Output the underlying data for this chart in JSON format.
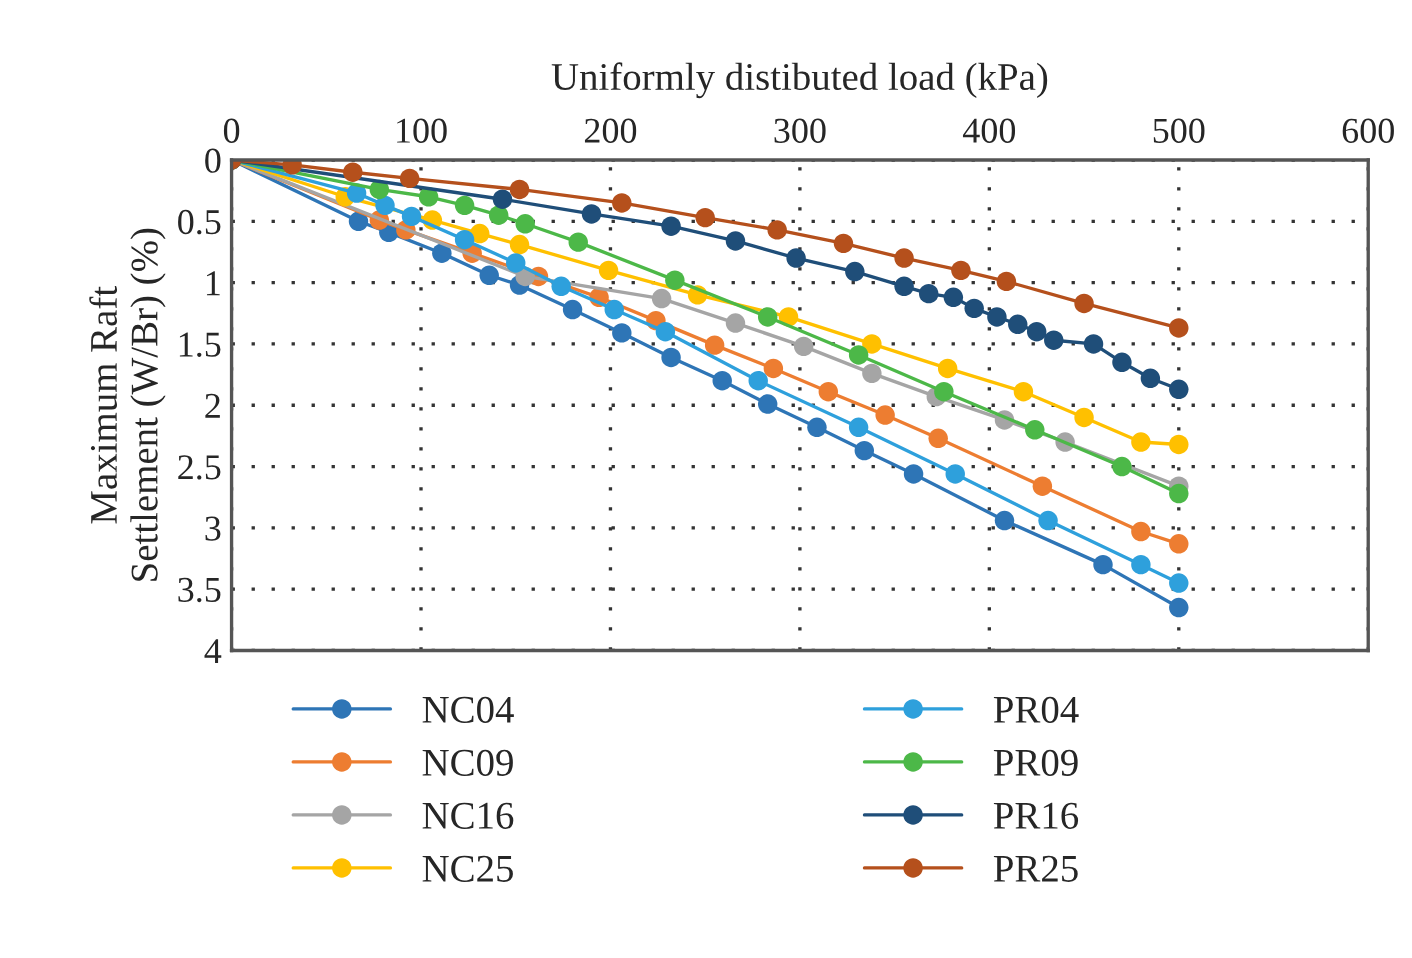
{
  "chart_data": {
    "type": "line",
    "xlabel": "Uniformly distibuted load (kPa)",
    "ylabel": "Maximum Raft\nSettlement (W/Br) (%)",
    "xlim": [
      0,
      600
    ],
    "xticks": [
      0,
      100,
      200,
      300,
      400,
      500,
      600
    ],
    "ylim": [
      4,
      0
    ],
    "yticks": [
      0,
      0.5,
      1,
      1.5,
      2,
      2.5,
      3,
      3.5,
      4
    ],
    "grid": true,
    "legend": "bottom",
    "marker": "circle",
    "line_style": "solid",
    "series": [
      {
        "name": "NC04",
        "color": "#2e75b6",
        "x": [
          0,
          67,
          83,
          111,
          136,
          152,
          180,
          206,
          232,
          259,
          283,
          309,
          334,
          360,
          408,
          460,
          500
        ],
        "values": [
          0,
          0.5,
          0.59,
          0.76,
          0.94,
          1.02,
          1.22,
          1.41,
          1.61,
          1.8,
          1.99,
          2.18,
          2.37,
          2.56,
          2.94,
          3.3,
          3.65
        ]
      },
      {
        "name": "NC09",
        "color": "#ed7d31",
        "x": [
          0,
          78,
          92,
          127,
          162,
          194,
          224,
          255,
          286,
          315,
          345,
          373,
          428,
          480,
          500
        ],
        "values": [
          0,
          0.49,
          0.57,
          0.76,
          0.95,
          1.12,
          1.31,
          1.51,
          1.7,
          1.89,
          2.08,
          2.27,
          2.66,
          3.03,
          3.13
        ]
      },
      {
        "name": "NC16",
        "color": "#a5a5a5",
        "x": [
          0,
          80,
          155,
          227,
          266,
          302,
          338,
          372,
          408,
          440,
          470,
          500
        ],
        "values": [
          0,
          null,
          0.95,
          1.13,
          1.33,
          1.52,
          1.74,
          1.93,
          2.12,
          2.3,
          null,
          2.66
        ]
      },
      {
        "name": "NC25",
        "color": "#ffc000",
        "x": [
          0,
          60,
          106,
          131,
          152,
          199,
          246,
          294,
          338,
          378,
          418,
          450,
          480,
          500
        ],
        "values": [
          0,
          0.3,
          0.49,
          0.6,
          0.69,
          0.9,
          1.1,
          1.28,
          1.5,
          1.7,
          1.89,
          2.1,
          2.3,
          2.32
        ]
      },
      {
        "name": "PR04",
        "color": "#2ea0dc",
        "x": [
          0,
          66,
          81,
          95,
          123,
          150,
          174,
          202,
          229,
          278,
          331,
          382,
          431,
          480,
          500
        ],
        "values": [
          0,
          0.27,
          0.37,
          0.46,
          0.65,
          0.84,
          1.03,
          1.22,
          1.4,
          1.8,
          2.18,
          2.56,
          2.94,
          3.3,
          3.45
        ]
      },
      {
        "name": "PR09",
        "color": "#4cb848",
        "x": [
          0,
          78,
          104,
          123,
          141,
          155,
          183,
          234,
          283,
          331,
          376,
          424,
          470,
          500
        ],
        "values": [
          0,
          0.24,
          0.3,
          0.37,
          0.45,
          0.52,
          0.67,
          0.98,
          1.28,
          1.59,
          1.89,
          2.2,
          2.5,
          2.72
        ]
      },
      {
        "name": "PR16",
        "color": "#1f4e79",
        "x": [
          0,
          93,
          143,
          190,
          232,
          266,
          298,
          329,
          355,
          368,
          381,
          392,
          404,
          415,
          425,
          434,
          455,
          470,
          485,
          500
        ],
        "values": [
          0,
          null,
          0.32,
          0.44,
          0.54,
          0.66,
          0.8,
          0.91,
          1.03,
          1.09,
          1.12,
          1.21,
          1.28,
          1.34,
          1.4,
          1.47,
          1.5,
          1.65,
          1.78,
          1.87
        ]
      },
      {
        "name": "PR25",
        "color": "#b5501c",
        "x": [
          0,
          32,
          64,
          94,
          152,
          206,
          250,
          288,
          323,
          355,
          385,
          409,
          450,
          500
        ],
        "values": [
          0,
          0.04,
          0.1,
          0.15,
          0.24,
          0.35,
          0.47,
          0.57,
          0.68,
          0.8,
          0.9,
          0.99,
          1.17,
          1.37
        ]
      }
    ]
  }
}
